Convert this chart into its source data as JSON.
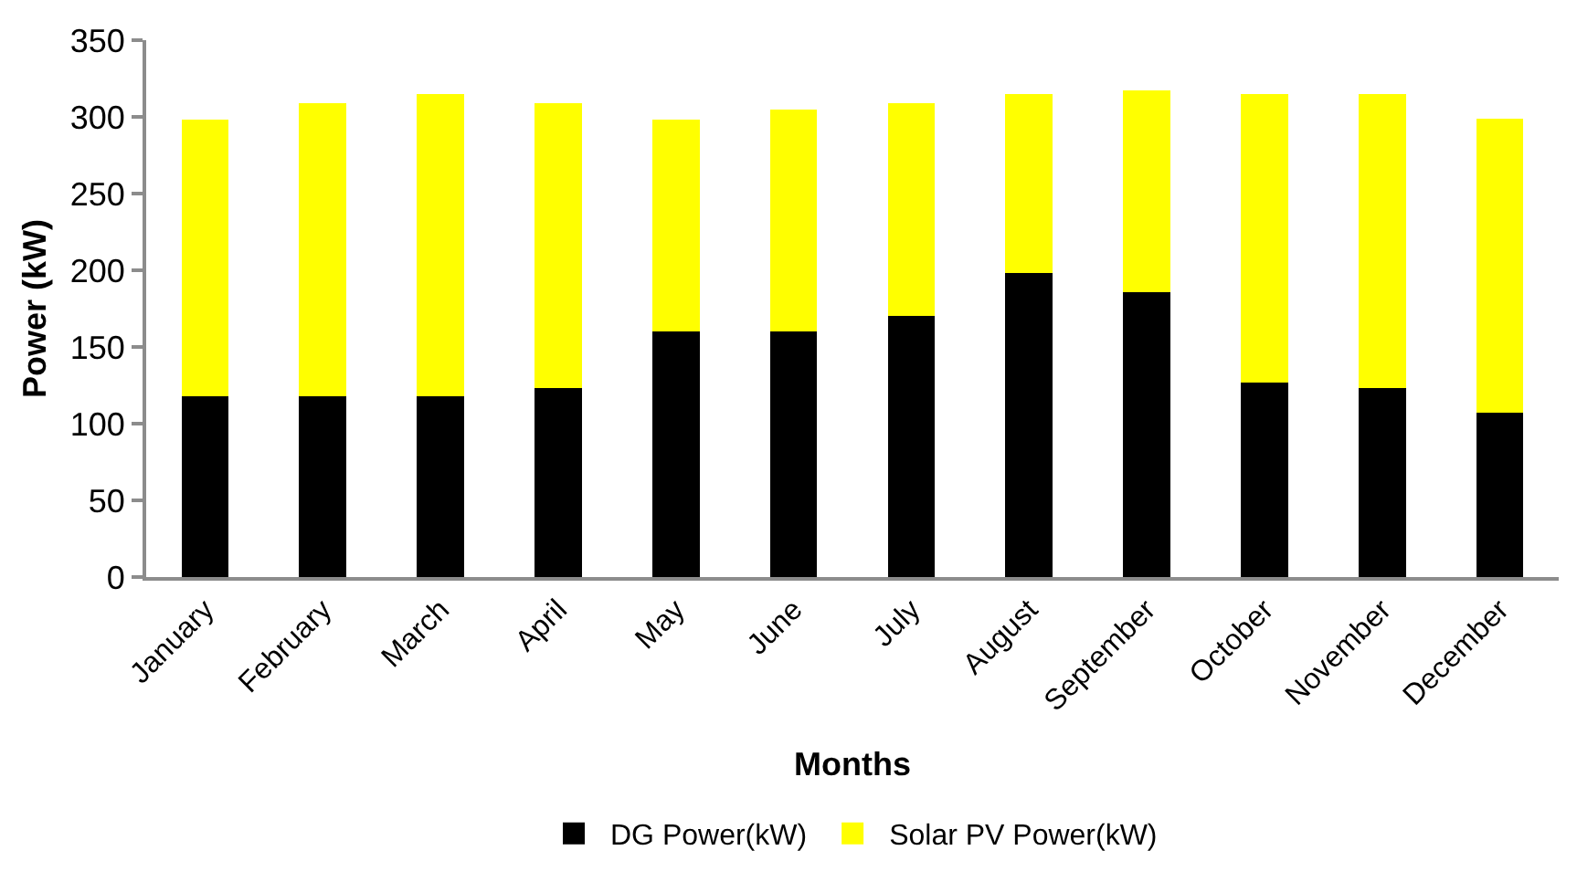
{
  "chart_data": {
    "type": "bar",
    "stacked": true,
    "xlabel": "Months",
    "ylabel": "Power (kW)",
    "categories": [
      "January",
      "February",
      "March",
      "April",
      "May",
      "June",
      "July",
      "August",
      "September",
      "October",
      "November",
      "December"
    ],
    "series": [
      {
        "name": "DG Power(kW)",
        "color": "#000000",
        "values": [
          118,
          118,
          118,
          123,
          160,
          160,
          170,
          198,
          186,
          127,
          123,
          107
        ]
      },
      {
        "name": "Solar PV Power(kW)",
        "color": "#ffff00",
        "values": [
          180,
          191,
          197,
          186,
          138,
          145,
          139,
          117,
          131,
          188,
          192,
          192
        ]
      }
    ],
    "ylim": [
      0,
      350
    ],
    "yticks": [
      0,
      50,
      100,
      150,
      200,
      250,
      300,
      350
    ],
    "grid": false,
    "legend": "bottom"
  }
}
